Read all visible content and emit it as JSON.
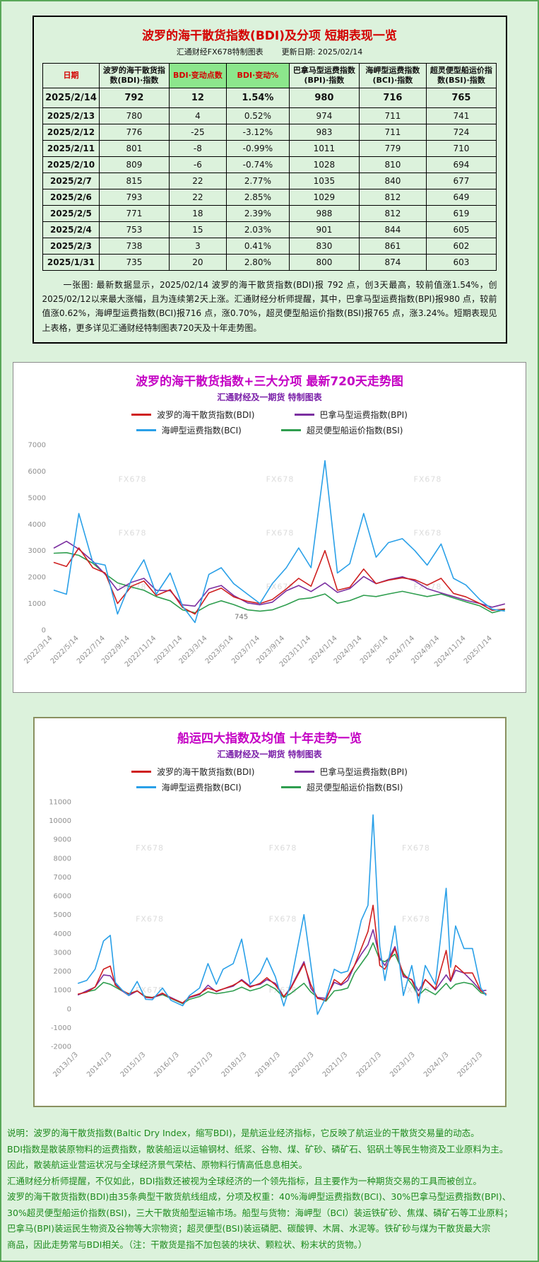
{
  "page": {
    "bg": "#dcf2dc",
    "border": "#59a859"
  },
  "table_section": {
    "title": "波罗的海干散货指数(BDI)及分项 短期表现一览",
    "source": "汇通财经FX678特制图表",
    "updated": "更新日期: 2025/02/14",
    "headers": [
      "日期",
      "波罗的海干散货指数(BDI)·指数",
      "BDI·变动点数",
      "BDI·变动%",
      "巴拿马型运费指数(BPI)·指数",
      "海岬型运费指数(BCI)·指数",
      "超灵便型船运价指数(BSI)·指数"
    ],
    "rows": [
      [
        "2025/2/14",
        "792",
        "12",
        "1.54%",
        "980",
        "716",
        "765"
      ],
      [
        "2025/2/13",
        "780",
        "4",
        "0.52%",
        "974",
        "711",
        "741"
      ],
      [
        "2025/2/12",
        "776",
        "-25",
        "-3.12%",
        "983",
        "711",
        "724"
      ],
      [
        "2025/2/11",
        "801",
        "-8",
        "-0.99%",
        "1011",
        "779",
        "710"
      ],
      [
        "2025/2/10",
        "809",
        "-6",
        "-0.74%",
        "1028",
        "810",
        "694"
      ],
      [
        "2025/2/7",
        "815",
        "22",
        "2.77%",
        "1035",
        "840",
        "677"
      ],
      [
        "2025/2/6",
        "793",
        "22",
        "2.85%",
        "1029",
        "812",
        "649"
      ],
      [
        "2025/2/5",
        "771",
        "18",
        "2.39%",
        "988",
        "812",
        "619"
      ],
      [
        "2025/2/4",
        "753",
        "15",
        "2.03%",
        "901",
        "844",
        "605"
      ],
      [
        "2025/2/3",
        "738",
        "3",
        "0.41%",
        "830",
        "861",
        "602"
      ],
      [
        "2025/1/31",
        "735",
        "20",
        "2.80%",
        "800",
        "874",
        "603"
      ]
    ],
    "note": "一张图: 最新数据显示，2025/02/14 波罗的海干散货指数(BDI)报 792 点，创3天最高，较前值涨1.54%，创2025/02/12以来最大涨幅，且为连续第2天上涨。汇通财经分析师提醒，其中，巴拿马型运费指数(BPI)报980 点，较前值涨0.62%，海岬型运费指数(BCI)报716 点，涨0.70%，超灵便型船运价指数(BSI)报765 点，涨3.24%。短期表现见上表格，更多详见汇通财经特制图表720天及十年走势图。"
  },
  "chart_data": [
    {
      "type": "line",
      "title": "波罗的海干散货指数+三大分项  最新720天走势图",
      "subtitle": "汇通财经及一期货 特制图表",
      "watermark": "FX678",
      "legend_position": "top",
      "grid": false,
      "xlim": [
        2022.18,
        2025.16
      ],
      "ylim": [
        0,
        7000
      ],
      "yticks": [
        0,
        1000,
        2000,
        3000,
        4000,
        5000,
        6000,
        7000
      ],
      "xticks": [
        {
          "x": 2022.2,
          "label": "2022/3/14"
        },
        {
          "x": 2022.37,
          "label": "2022/5/14"
        },
        {
          "x": 2022.54,
          "label": "2022/7/14"
        },
        {
          "x": 2022.7,
          "label": "2022/9/14"
        },
        {
          "x": 2022.87,
          "label": "2022/11/14"
        },
        {
          "x": 2023.04,
          "label": "2023/1/14"
        },
        {
          "x": 2023.2,
          "label": "2023/3/14"
        },
        {
          "x": 2023.37,
          "label": "2023/5/14"
        },
        {
          "x": 2023.54,
          "label": "2023/7/14"
        },
        {
          "x": 2023.7,
          "label": "2023/9/14"
        },
        {
          "x": 2023.87,
          "label": "2023/11/14"
        },
        {
          "x": 2024.04,
          "label": "2024/1/14"
        },
        {
          "x": 2024.2,
          "label": "2024/3/14"
        },
        {
          "x": 2024.37,
          "label": "2024/5/14"
        },
        {
          "x": 2024.54,
          "label": "2024/7/14"
        },
        {
          "x": 2024.7,
          "label": "2024/9/14"
        },
        {
          "x": 2024.87,
          "label": "2024/11/14"
        },
        {
          "x": 2025.04,
          "label": "2025/1/14"
        }
      ],
      "x": [
        2022.21,
        2022.29,
        2022.37,
        2022.46,
        2022.54,
        2022.62,
        2022.71,
        2022.79,
        2022.87,
        2022.96,
        2023.04,
        2023.12,
        2023.21,
        2023.29,
        2023.37,
        2023.46,
        2023.54,
        2023.62,
        2023.71,
        2023.79,
        2023.87,
        2023.96,
        2024.04,
        2024.12,
        2024.21,
        2024.29,
        2024.37,
        2024.46,
        2024.54,
        2024.62,
        2024.71,
        2024.79,
        2024.87,
        2024.96,
        2025.04,
        2025.12
      ],
      "annotation": {
        "text": "745",
        "x": 2023.42,
        "y": 420
      },
      "draw_order": [
        3,
        1,
        0,
        2
      ],
      "series": [
        {
          "key": "bdi",
          "name": "波罗的海干散货指数(BDI)",
          "color": "#cf2020",
          "y": [
            2550,
            2400,
            3100,
            2350,
            2150,
            1000,
            1650,
            1850,
            1300,
            1520,
            850,
            600,
            1400,
            1580,
            1250,
            1080,
            1000,
            1150,
            1550,
            1950,
            1650,
            3000,
            1500,
            1610,
            2300,
            1750,
            1880,
            1970,
            1900,
            1690,
            1950,
            1380,
            1250,
            1000,
            740,
            792
          ]
        },
        {
          "key": "bpi",
          "name": "巴拿马型运费指数(BPI)",
          "color": "#7b2fa0",
          "y": [
            3100,
            3350,
            3050,
            2600,
            2100,
            1500,
            1800,
            1950,
            1500,
            1480,
            950,
            900,
            1550,
            1680,
            1300,
            1020,
            950,
            1050,
            1480,
            1680,
            1450,
            1780,
            1420,
            1560,
            2020,
            1750,
            1900,
            2010,
            1850,
            1560,
            1400,
            1260,
            1120,
            1000,
            860,
            980
          ]
        },
        {
          "key": "bci",
          "name": "海岬型运费指数(BCI)",
          "color": "#2aa0e8",
          "y": [
            1500,
            1350,
            4400,
            2550,
            2450,
            600,
            1900,
            2650,
            1350,
            2150,
            900,
            280,
            2100,
            2350,
            1750,
            1350,
            1000,
            1750,
            2350,
            3100,
            2350,
            6400,
            2150,
            2500,
            4400,
            2750,
            3300,
            3450,
            3000,
            2450,
            3250,
            1950,
            1700,
            1150,
            780,
            716
          ]
        },
        {
          "key": "bsi",
          "name": "超灵便型船运价指数(BSI)",
          "color": "#2f9e4f",
          "y": [
            2900,
            2920,
            2820,
            2520,
            2120,
            1780,
            1620,
            1500,
            1260,
            1100,
            760,
            650,
            950,
            1100,
            960,
            760,
            710,
            760,
            950,
            1160,
            1210,
            1360,
            1010,
            1110,
            1310,
            1260,
            1360,
            1460,
            1360,
            1260,
            1360,
            1210,
            1060,
            910,
            650,
            765
          ]
        }
      ]
    },
    {
      "type": "line",
      "title": "船运四大指数及均值 十年走势一览",
      "subtitle": "汇通财经及一期货 特制图表",
      "watermark": "FX678",
      "legend_position": "top",
      "grid": false,
      "xlim": [
        2012.9,
        2025.25
      ],
      "ylim": [
        -2000,
        11000
      ],
      "yticks": [
        -2000,
        -1000,
        0,
        1000,
        2000,
        3000,
        4000,
        5000,
        6000,
        7000,
        8000,
        9000,
        10000,
        11000
      ],
      "xticks": [
        {
          "x": 2013,
          "label": "2013/1/3"
        },
        {
          "x": 2014,
          "label": "2014/1/3"
        },
        {
          "x": 2015,
          "label": "2015/1/3"
        },
        {
          "x": 2016,
          "label": "2016/1/3"
        },
        {
          "x": 2017,
          "label": "2017/1/3"
        },
        {
          "x": 2018,
          "label": "2018/1/3"
        },
        {
          "x": 2019,
          "label": "2019/1/3"
        },
        {
          "x": 2020,
          "label": "2020/1/3"
        },
        {
          "x": 2021,
          "label": "2021/1/3"
        },
        {
          "x": 2022,
          "label": "2022/1/3"
        },
        {
          "x": 2023,
          "label": "2023/1/3"
        },
        {
          "x": 2024,
          "label": "2024/1/3"
        },
        {
          "x": 2025,
          "label": "2025/1/3"
        }
      ],
      "x": [
        2013.0,
        2013.25,
        2013.5,
        2013.75,
        2013.95,
        2014.1,
        2014.3,
        2014.5,
        2014.75,
        2015.0,
        2015.2,
        2015.5,
        2015.75,
        2016.1,
        2016.3,
        2016.6,
        2016.85,
        2017.1,
        2017.3,
        2017.6,
        2017.85,
        2018.1,
        2018.4,
        2018.6,
        2018.85,
        2019.1,
        2019.3,
        2019.7,
        2019.9,
        2020.1,
        2020.35,
        2020.6,
        2020.8,
        2021.0,
        2021.2,
        2021.4,
        2021.6,
        2021.75,
        2021.95,
        2022.1,
        2022.4,
        2022.65,
        2022.9,
        2023.1,
        2023.3,
        2023.6,
        2023.92,
        2024.05,
        2024.2,
        2024.45,
        2024.7,
        2024.95,
        2025.1
      ],
      "draw_order": [
        3,
        1,
        0,
        2
      ],
      "series": [
        {
          "key": "bdi",
          "name": "波罗的海干散货指数(BDI)",
          "color": "#cf2020",
          "y": [
            780,
            880,
            1150,
            2100,
            2270,
            1250,
            980,
            780,
            950,
            620,
            590,
            830,
            560,
            310,
            620,
            800,
            1100,
            940,
            1050,
            1250,
            1500,
            1150,
            1350,
            1650,
            1270,
            640,
            1050,
            2400,
            1300,
            550,
            450,
            1550,
            1300,
            1700,
            2300,
            3200,
            4100,
            5500,
            2300,
            2100,
            3200,
            1800,
            1520,
            680,
            1550,
            1050,
            3100,
            1500,
            2300,
            1900,
            1900,
            950,
            792
          ]
        },
        {
          "key": "bpi",
          "name": "巴拿马型运费指数(BPI)",
          "color": "#7b2fa0",
          "y": [
            740,
            950,
            1150,
            1800,
            1750,
            1350,
            950,
            700,
            950,
            600,
            570,
            800,
            600,
            300,
            600,
            750,
            1250,
            900,
            1050,
            1200,
            1550,
            1200,
            1300,
            1550,
            1350,
            650,
            1100,
            2500,
            1100,
            600,
            550,
            1400,
            1250,
            1500,
            2300,
            2900,
            3400,
            4200,
            2700,
            2300,
            3300,
            1700,
            1550,
            950,
            1550,
            1000,
            1800,
            1450,
            2050,
            1900,
            1450,
            950,
            980
          ]
        },
        {
          "key": "bci",
          "name": "海岬型运费指数(BCI)",
          "color": "#2aa0e8",
          "y": [
            1350,
            1500,
            2100,
            3600,
            3900,
            1400,
            1000,
            700,
            1450,
            500,
            480,
            1100,
            450,
            160,
            700,
            1100,
            2400,
            1300,
            2100,
            2400,
            3700,
            1300,
            1900,
            2700,
            1700,
            150,
            1300,
            5000,
            2400,
            -300,
            600,
            2100,
            1900,
            2000,
            3100,
            4700,
            5500,
            10300,
            3300,
            1500,
            4400,
            700,
            2300,
            300,
            2300,
            1300,
            6400,
            2200,
            4400,
            3200,
            3200,
            1100,
            716
          ]
        },
        {
          "key": "bsi",
          "name": "超灵便型船运价指数(BSI)",
          "color": "#2f9e4f",
          "y": [
            760,
            900,
            1000,
            1400,
            1300,
            1150,
            950,
            800,
            950,
            650,
            600,
            750,
            550,
            270,
            500,
            650,
            900,
            800,
            850,
            950,
            1150,
            950,
            1100,
            1300,
            1050,
            600,
            800,
            1350,
            900,
            600,
            400,
            950,
            1000,
            1100,
            1900,
            2400,
            2900,
            3500,
            2600,
            2500,
            2900,
            1900,
            1300,
            700,
            1050,
            750,
            1350,
            1050,
            1300,
            1400,
            1300,
            850,
            765
          ]
        }
      ]
    }
  ],
  "footer": {
    "lines": [
      "说明：波罗的海干散货指数(Baltic Dry Index，缩写BDI)，是航运业经济指标，它反映了航运业的干散货交易量的动态。",
      "BDI指数是散装原物料的运费指数，散装船运以运输钢材、纸浆、谷物、煤、矿砂、磷矿石、铝矾土等民生物资及工业原料为主。",
      "因此，散装航运业营运状况与全球经济景气荣枯、原物料行情高低息息相关。",
      "汇通财经分析师提醒，不仅如此，BDI指数还被视为全球经济的一个领先指标，且主要作为一种期货交易的工具而被创立。",
      "波罗的海干散货指数(BDI)由35条典型干散货航线组成，分项及权重：40%海岬型运费指数(BCI)、30%巴拿马型运费指数(BPI)、",
      "30%超灵便型船运价指数(BSI)，三大干散货船型运输市场。船型与货物：海岬型（BCI）装运铁矿砂、焦煤、磷矿石等工业原料；",
      "巴拿马(BPI)装运民生物资及谷物等大宗物资；超灵便型(BSI)装运磷肥、碳酸钾、木屑、水泥等。铁矿砂与煤为干散货最大宗",
      "商品，因此走势常与BDI相关。（注：干散货是指不加包装的块状、颗粒状、粉末状的货物。）"
    ]
  }
}
